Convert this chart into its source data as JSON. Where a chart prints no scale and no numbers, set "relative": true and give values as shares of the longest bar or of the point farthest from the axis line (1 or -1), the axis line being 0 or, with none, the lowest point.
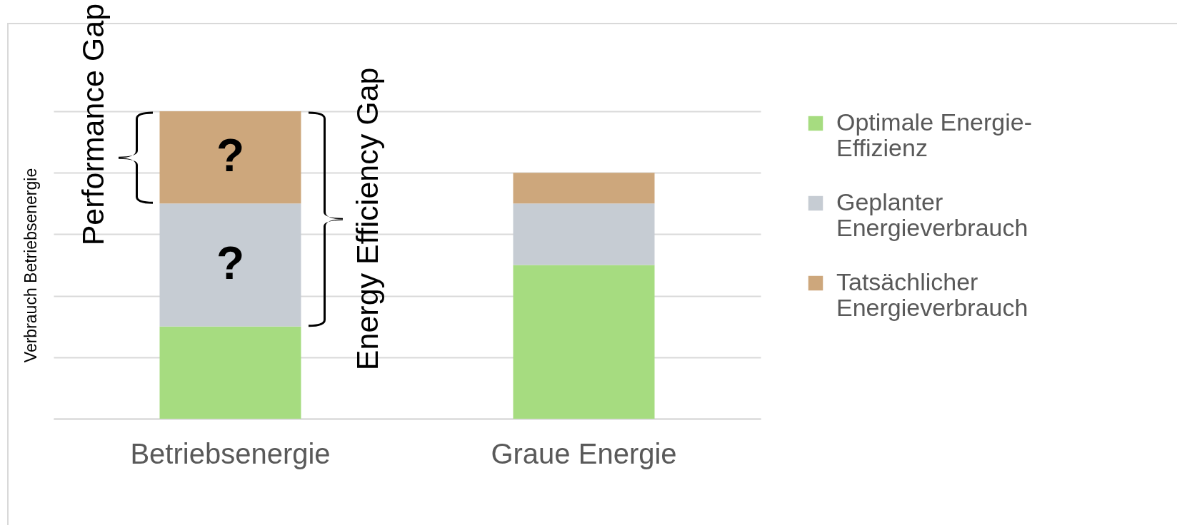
{
  "chart_data": {
    "type": "bar",
    "stacked": true,
    "relative": true,
    "grid": "y",
    "legend": "right",
    "ylabel": "Verbrauch Betriebsenergie",
    "categories": [
      "Betriebsenergie",
      "Graue Energie"
    ],
    "series": [
      {
        "name": "Optimale Energie-Effizienz",
        "color": "#a6dc80",
        "values": [
          0.3,
          0.5
        ]
      },
      {
        "name": "Geplanter Energieverbrauch",
        "color": "#c6ccd3",
        "values": [
          0.4,
          0.2
        ]
      },
      {
        "name": "Tatsächlicher Energieverbrauch",
        "color": "#cda77c",
        "values": [
          0.3,
          0.1
        ]
      }
    ],
    "annotations": [
      "Performance Gap",
      "Energy Efficiency Gap",
      "?",
      "?"
    ]
  }
}
